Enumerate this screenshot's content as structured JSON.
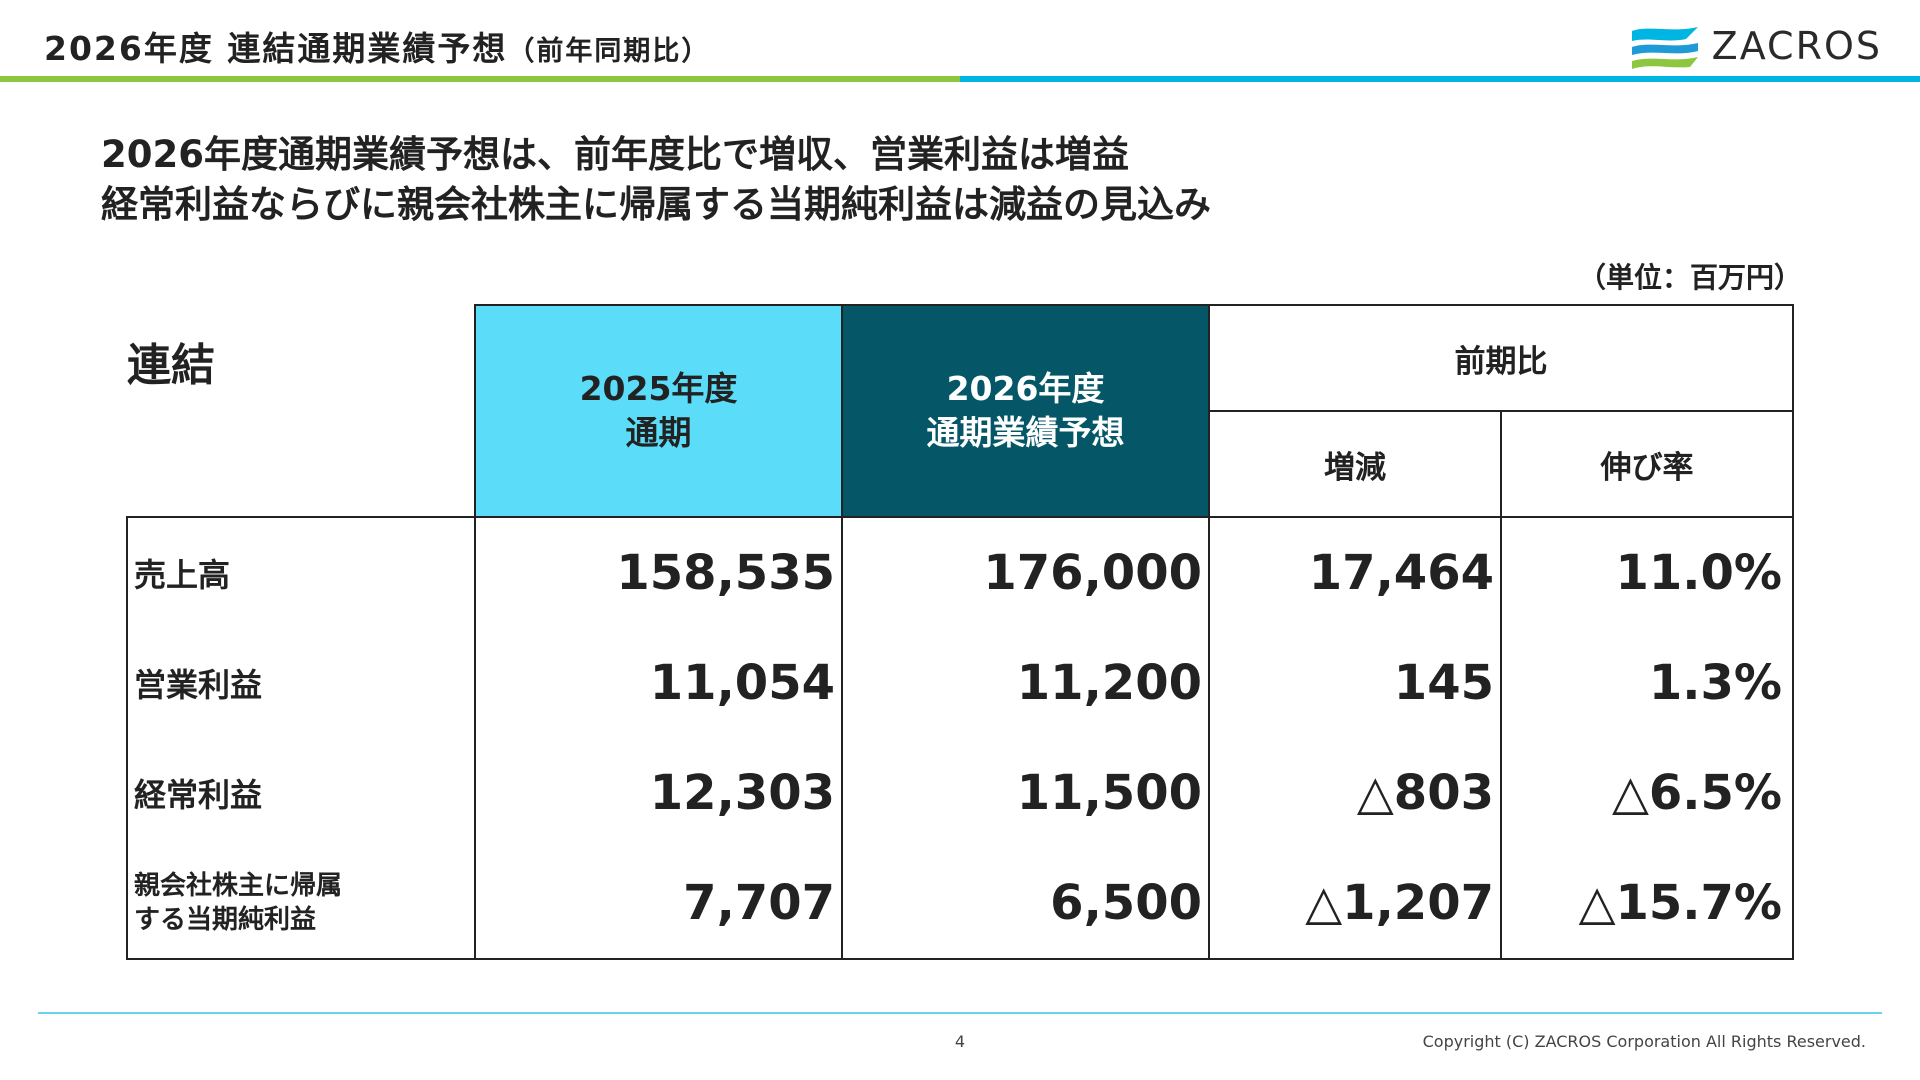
{
  "header": {
    "title": "2026年度 連結通期業績予想",
    "subtitle": "（前年同期比）"
  },
  "logo": {
    "text": "ZACROS",
    "icon": "zacros-wave-logo"
  },
  "colors": {
    "green_bar": "#8dc63f",
    "blue_bar": "#00b5e2",
    "prev_year_header": "#5bdcf9",
    "curr_year_header": "#055768"
  },
  "headline": {
    "line1": "2026年度通期業績予想は、前年度比で増収、営業利益は増益",
    "line2": "経常利益ならびに親会社株主に帰属する当期純利益は減益の見込み"
  },
  "unit": "（単位：百万円）",
  "table": {
    "corner": "連結",
    "prev_header": {
      "line1": "2025年度",
      "line2": "通期"
    },
    "curr_header": {
      "line1": "2026年度",
      "line2": "通期業績予想"
    },
    "group_header": "前期比",
    "sub_headers": [
      "増減",
      "伸び率"
    ],
    "rows": [
      {
        "label": "売上高",
        "prev": "158,535",
        "curr": "176,000",
        "diff": "17,464",
        "rate": "11.0%"
      },
      {
        "label": "営業利益",
        "prev": "11,054",
        "curr": "11,200",
        "diff": "145",
        "rate": "1.3%"
      },
      {
        "label": "経常利益",
        "prev": "12,303",
        "curr": "11,500",
        "diff": "△803",
        "rate": "△6.5%"
      },
      {
        "label_line1": "親会社株主に帰属",
        "label_line2": "する当期純利益",
        "prev": "7,707",
        "curr": "6,500",
        "diff": "△1,207",
        "rate": "△15.7%"
      }
    ]
  },
  "footer": {
    "page": "4",
    "copyright": "Copyright (C) ZACROS Corporation  All Rights Reserved."
  }
}
